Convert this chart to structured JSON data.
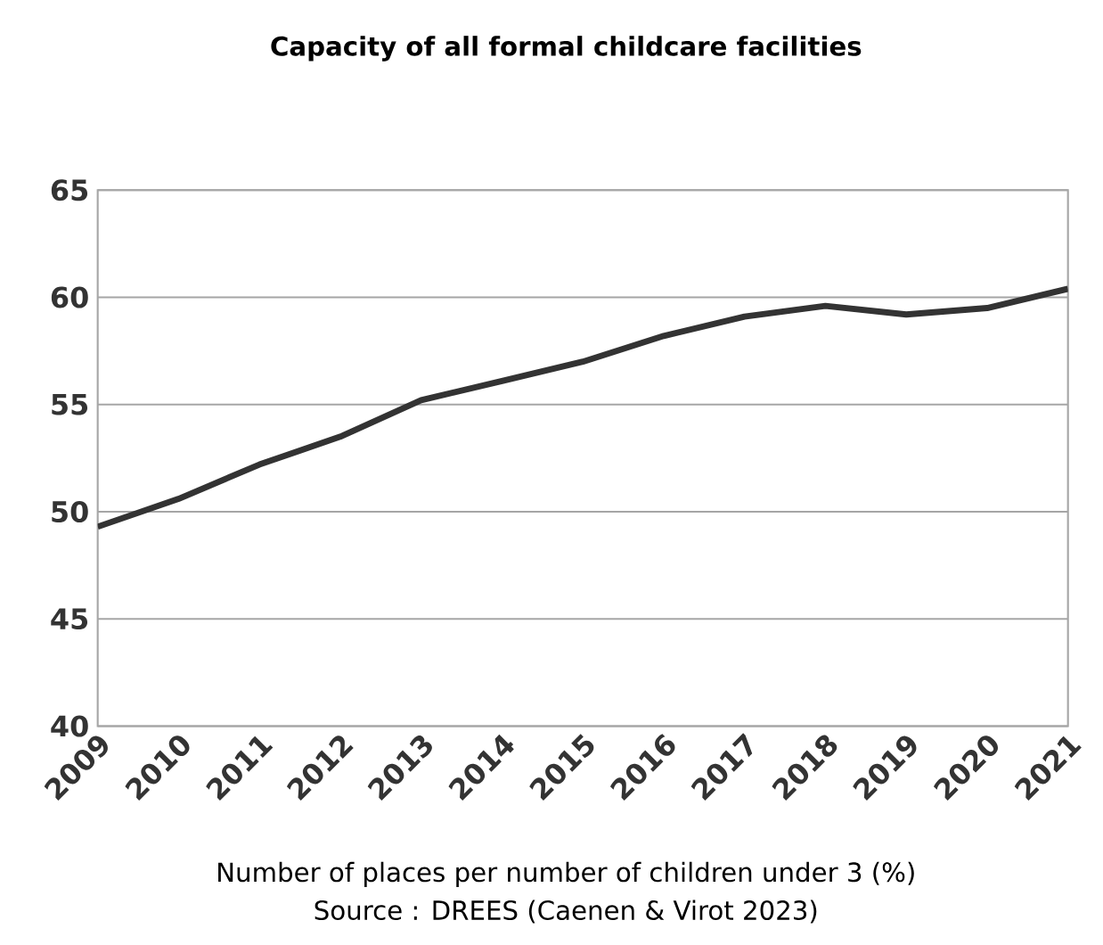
{
  "chart_data": {
    "type": "line",
    "title": "Capacity of all formal childcare facilities",
    "xlabel": "Number of places per number of children under 3 (%)",
    "annotations": [
      "Source : DREES (Caenen & Virot 2023)"
    ],
    "categories": [
      "2009",
      "2010",
      "2011",
      "2012",
      "2013",
      "2014",
      "2015",
      "2016",
      "2017",
      "2018",
      "2019",
      "2020",
      "2021"
    ],
    "series": [
      {
        "color": "#333333",
        "values": [
          49.3,
          50.6,
          52.2,
          53.5,
          55.2,
          56.1,
          57.0,
          58.2,
          59.1,
          59.6,
          59.2,
          59.5,
          60.4
        ]
      }
    ],
    "ylim": [
      40,
      65
    ],
    "yticks": [
      40,
      45,
      50,
      55,
      60,
      65
    ],
    "grid": "y",
    "marker": "none",
    "line_style": "solid"
  }
}
